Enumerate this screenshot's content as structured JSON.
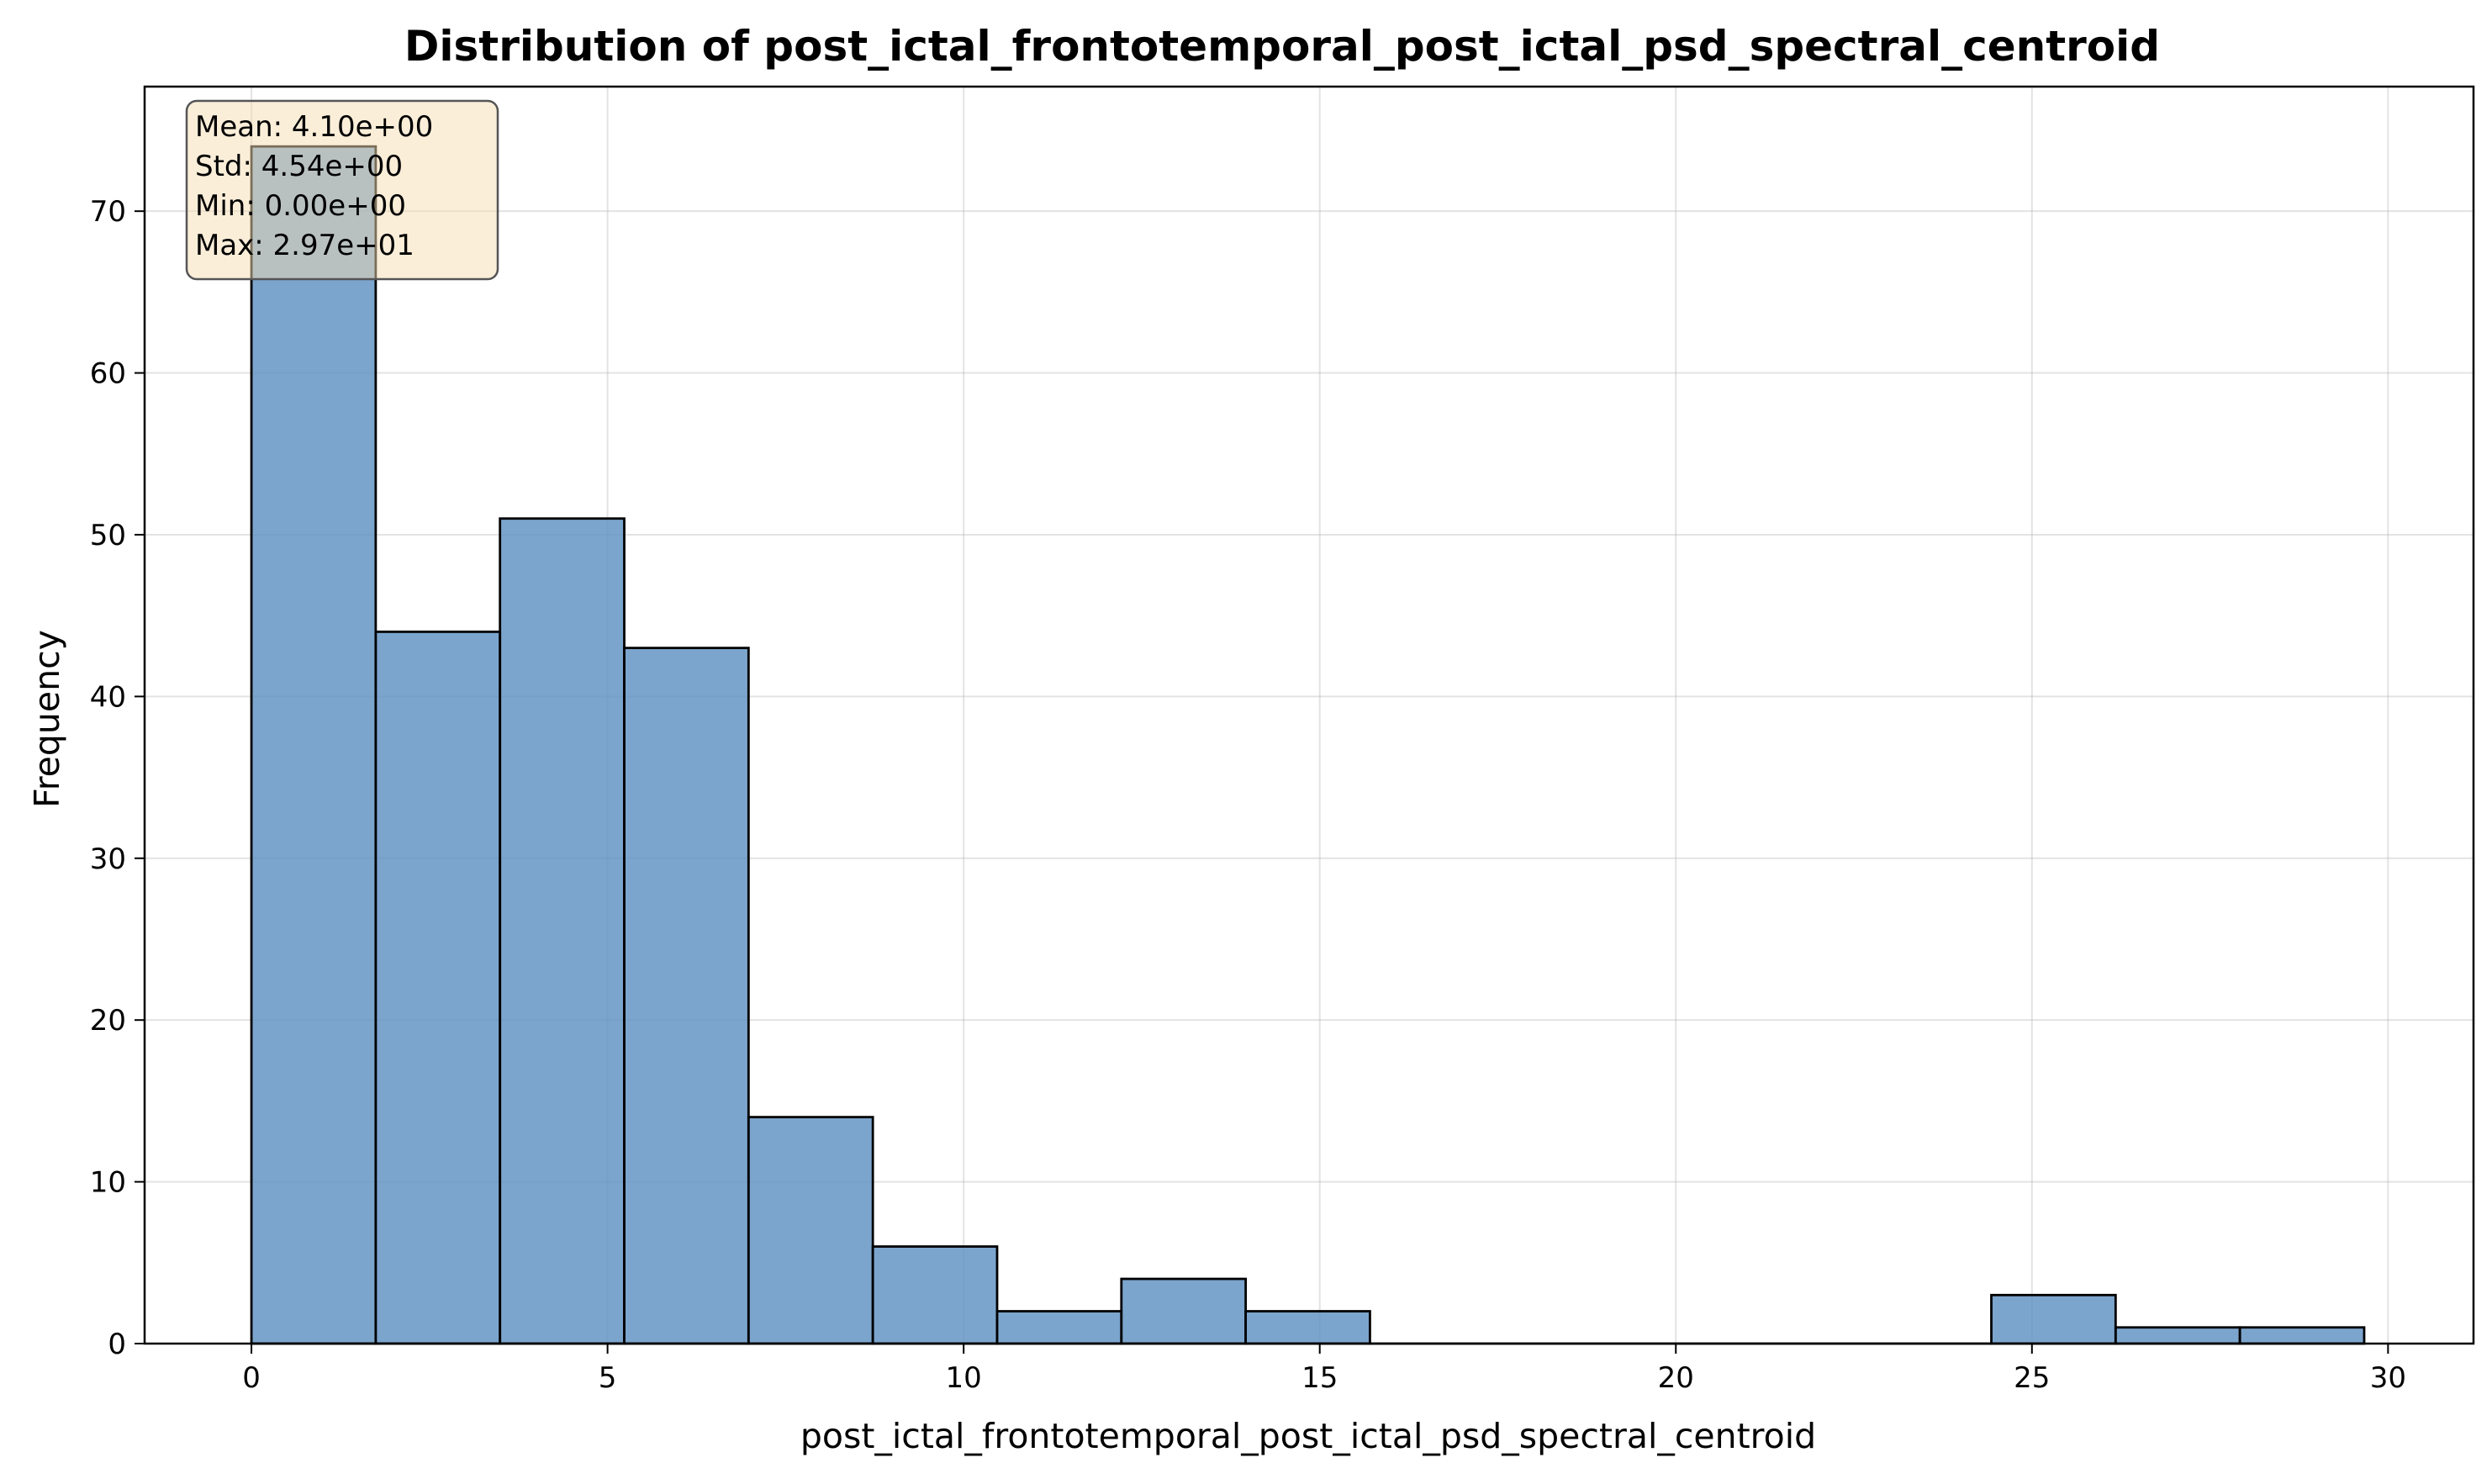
{
  "chart_data": {
    "type": "bar",
    "subtype": "histogram",
    "title": "Distribution of post_ictal_frontotemporal_post_ictal_psd_spectral_centroid",
    "xlabel": "post_ictal_frontotemporal_post_ictal_psd_spectral_centroid",
    "ylabel": "Frequency",
    "xlim": [
      -1.5,
      31.2
    ],
    "ylim": [
      0,
      77.7
    ],
    "x_ticks": [
      0,
      5,
      10,
      15,
      20,
      25,
      30
    ],
    "y_ticks": [
      0,
      10,
      20,
      30,
      40,
      50,
      60,
      70
    ],
    "grid": true,
    "bar_color": "#5b8fc1",
    "bar_edge_color": "#000000",
    "bins": [
      {
        "start": 0.0,
        "end": 1.745,
        "count": 74
      },
      {
        "start": 1.745,
        "end": 3.49,
        "count": 44
      },
      {
        "start": 3.49,
        "end": 5.235,
        "count": 51
      },
      {
        "start": 5.235,
        "end": 6.98,
        "count": 43
      },
      {
        "start": 6.98,
        "end": 8.725,
        "count": 14
      },
      {
        "start": 8.725,
        "end": 10.47,
        "count": 6
      },
      {
        "start": 10.47,
        "end": 12.215,
        "count": 2
      },
      {
        "start": 12.215,
        "end": 13.96,
        "count": 4
      },
      {
        "start": 13.96,
        "end": 15.705,
        "count": 2
      },
      {
        "start": 15.705,
        "end": 17.45,
        "count": 0
      },
      {
        "start": 17.45,
        "end": 19.195,
        "count": 0
      },
      {
        "start": 19.195,
        "end": 20.94,
        "count": 0
      },
      {
        "start": 20.94,
        "end": 22.685,
        "count": 0
      },
      {
        "start": 22.685,
        "end": 24.43,
        "count": 0
      },
      {
        "start": 24.43,
        "end": 26.175,
        "count": 3
      },
      {
        "start": 26.175,
        "end": 27.92,
        "count": 1
      },
      {
        "start": 27.92,
        "end": 29.665,
        "count": 1
      }
    ],
    "stats_box": {
      "mean": "Mean: 4.10e+00",
      "std": "Std: 4.54e+00",
      "min": "Min: 0.00e+00",
      "max": "Max: 2.97e+01",
      "background": "#f5deb3"
    }
  }
}
